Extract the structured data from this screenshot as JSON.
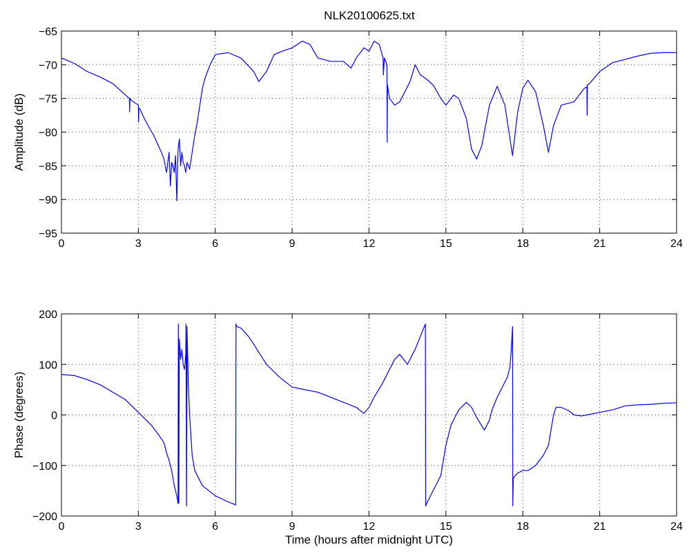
{
  "figure": {
    "title": "NLK20100625.txt"
  },
  "colors": {
    "series": "#0000ff",
    "axes": "#000000",
    "background": "#ffffff"
  },
  "chart_data": [
    {
      "type": "line",
      "title": "NLK20100625.txt",
      "xlabel": "",
      "ylabel": "Amplitude (dB)",
      "xlim": [
        0,
        24
      ],
      "ylim": [
        -95,
        -65
      ],
      "xticks": [
        0,
        3,
        6,
        9,
        12,
        15,
        18,
        21,
        24
      ],
      "yticks": [
        -95,
        -90,
        -85,
        -80,
        -75,
        -70,
        -65
      ],
      "grid": true,
      "series": [
        {
          "x": [
            0,
            0.5,
            1,
            1.5,
            2,
            2.5,
            2.65,
            2.66,
            2.67,
            2.7,
            3.0,
            3.01,
            3.02,
            3.05,
            3.3,
            3.6,
            3.9,
            4.0,
            4.1,
            4.2,
            4.25,
            4.3,
            4.35,
            4.4,
            4.45,
            4.5,
            4.55,
            4.6,
            4.65,
            4.7,
            4.75,
            4.8,
            4.85,
            4.9,
            5.0,
            5.1,
            5.2,
            5.3,
            5.4,
            5.5,
            5.6,
            5.8,
            6.0,
            6.5,
            7.0,
            7.5,
            7.7,
            8.0,
            8.3,
            8.6,
            9.0,
            9.4,
            9.7,
            10.0,
            10.5,
            11.0,
            11.3,
            11.5,
            11.8,
            12.0,
            12.2,
            12.4,
            12.55,
            12.56,
            12.6,
            12.7,
            12.71,
            12.72,
            12.8,
            13.0,
            13.2,
            13.4,
            13.6,
            13.8,
            14.0,
            14.2,
            14.5,
            14.8,
            15.0,
            15.3,
            15.5,
            15.8,
            16.0,
            16.2,
            16.4,
            16.7,
            17.0,
            17.3,
            17.6,
            17.8,
            18.0,
            18.2,
            18.5,
            18.8,
            19.0,
            19.2,
            19.5,
            20.0,
            20.4,
            20.5,
            20.51,
            20.52,
            20.6,
            21.0,
            21.5,
            22.0,
            22.5,
            23.0,
            23.5,
            24
          ],
          "values": [
            -69,
            -69.8,
            -71,
            -71.8,
            -72.8,
            -74.5,
            -75,
            -77,
            -75,
            -75.2,
            -76,
            -78.5,
            -76.5,
            -76.5,
            -78.5,
            -80.5,
            -83,
            -84,
            -86,
            -83,
            -88,
            -84.5,
            -85,
            -86,
            -83.5,
            -90.2,
            -82.5,
            -81,
            -85,
            -83,
            -84.5,
            -85,
            -86,
            -84.5,
            -85.5,
            -83,
            -80.5,
            -78.5,
            -76,
            -73.5,
            -72,
            -70,
            -68.5,
            -68.2,
            -69,
            -71,
            -72.5,
            -71,
            -68.5,
            -68,
            -67.5,
            -66.5,
            -67,
            -69,
            -69.5,
            -69.5,
            -70.5,
            -69,
            -67.5,
            -68,
            -66.5,
            -67,
            -69,
            -71.5,
            -69,
            -70,
            -81.5,
            -73,
            -75,
            -76,
            -75.5,
            -74,
            -72.5,
            -70,
            -71.5,
            -72,
            -73,
            -75,
            -76,
            -74.5,
            -75,
            -78,
            -82.5,
            -84,
            -82,
            -76,
            -73.2,
            -76,
            -83.5,
            -77,
            -73.5,
            -72.3,
            -74,
            -79,
            -83,
            -79,
            -76,
            -75.5,
            -73.5,
            -73.3,
            -77.5,
            -73,
            -72.8,
            -71,
            -69.7,
            -69.2,
            -68.7,
            -68.3,
            -68.2,
            -68.2
          ]
        }
      ]
    },
    {
      "type": "line",
      "title": "",
      "xlabel": "Time (hours after midnight UTC)",
      "ylabel": "Phase (degrees)",
      "xlim": [
        0,
        24
      ],
      "ylim": [
        -200,
        200
      ],
      "xticks": [
        0,
        3,
        6,
        9,
        12,
        15,
        18,
        21,
        24
      ],
      "yticks": [
        -200,
        -100,
        0,
        100,
        200
      ],
      "grid": true,
      "series": [
        {
          "x": [
            0,
            0.5,
            1.0,
            1.5,
            2.0,
            2.5,
            3.0,
            3.5,
            3.8,
            4.0,
            4.1,
            4.2,
            4.3,
            4.4,
            4.5,
            4.55,
            4.56,
            4.58,
            4.6,
            4.65,
            4.7,
            4.75,
            4.8,
            4.85,
            4.86,
            4.88,
            4.9,
            4.95,
            5.0,
            5.05,
            5.1,
            5.2,
            5.5,
            6.0,
            6.5,
            6.8,
            6.81,
            6.83,
            7.0,
            7.3,
            7.5,
            8.0,
            8.5,
            9.0,
            9.5,
            10.0,
            10.5,
            11.0,
            11.5,
            11.8,
            12.0,
            12.2,
            12.5,
            12.8,
            13.0,
            13.2,
            13.5,
            13.8,
            14.0,
            14.2,
            14.21,
            14.3,
            14.5,
            14.8,
            15.0,
            15.2,
            15.5,
            15.8,
            16.0,
            16.2,
            16.5,
            16.7,
            16.8,
            17.0,
            17.2,
            17.4,
            17.5,
            17.55,
            17.6,
            17.61,
            17.63,
            17.7,
            17.8,
            18.0,
            18.2,
            18.5,
            18.8,
            19.0,
            19.2,
            19.3,
            19.5,
            19.8,
            20.0,
            20.3,
            20.5,
            21.0,
            21.5,
            22.0,
            22.5,
            23.0,
            23.5,
            24
          ],
          "values": [
            80,
            78,
            70,
            60,
            45,
            30,
            5,
            -20,
            -40,
            -55,
            -75,
            -90,
            -110,
            -140,
            -160,
            -175,
            180,
            -175,
            150,
            110,
            130,
            100,
            90,
            120,
            180,
            -180,
            175,
            60,
            0,
            -40,
            -80,
            -110,
            -140,
            -160,
            -172,
            -178,
            180,
            175,
            172,
            155,
            140,
            100,
            75,
            55,
            50,
            45,
            35,
            25,
            15,
            3,
            15,
            35,
            60,
            90,
            110,
            120,
            100,
            130,
            155,
            180,
            -180,
            -170,
            -150,
            -120,
            -60,
            -20,
            10,
            25,
            15,
            -5,
            -30,
            -10,
            10,
            35,
            55,
            75,
            95,
            130,
            175,
            -180,
            -125,
            -120,
            -115,
            -110,
            -110,
            -100,
            -80,
            -60,
            0,
            15,
            15,
            8,
            0,
            -2,
            0,
            5,
            10,
            18,
            20,
            21,
            23,
            24
          ]
        }
      ]
    }
  ]
}
